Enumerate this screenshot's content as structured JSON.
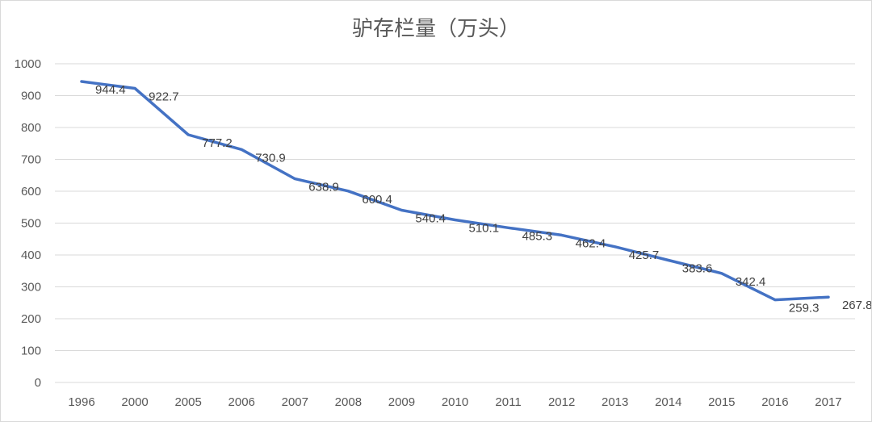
{
  "chart_data": {
    "type": "line",
    "title": "驴存栏量（万头）",
    "xlabel": "",
    "ylabel": "",
    "categories": [
      "1996",
      "2000",
      "2005",
      "2006",
      "2007",
      "2008",
      "2009",
      "2010",
      "2011",
      "2012",
      "2013",
      "2014",
      "2015",
      "2016",
      "2017"
    ],
    "series": [
      {
        "values": [
          944.4,
          922.7,
          777.2,
          730.9,
          638.9,
          600.4,
          540.4,
          510.1,
          485.3,
          462.4,
          425.7,
          383.6,
          342.4,
          259.3,
          267.8
        ]
      }
    ],
    "data_labels": [
      "944.4",
      "922.7",
      "777.2",
      "730.9",
      "638.9",
      "600.4",
      "540.4",
      "510.1",
      "485.3",
      "462.4",
      "425.7",
      "383.6",
      "342.4",
      "259.3",
      "267.8"
    ],
    "ylim": [
      0,
      1000
    ],
    "yticks": [
      "0",
      "100",
      "200",
      "300",
      "400",
      "500",
      "600",
      "700",
      "800",
      "900",
      "1000"
    ],
    "grid": true,
    "legend": "none",
    "line_color": "#4472c4"
  }
}
